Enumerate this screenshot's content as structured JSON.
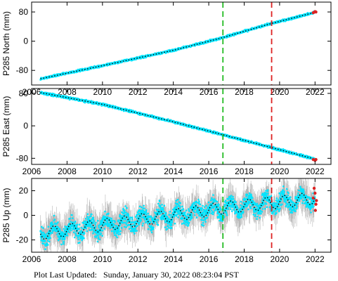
{
  "chart_data": [
    {
      "type": "scatter",
      "ylabel": "P285 North (mm)",
      "xlim": [
        2006,
        2022.9
      ],
      "ylim": [
        -120,
        107
      ],
      "yticks": [
        -80,
        0,
        80
      ],
      "xticks": [
        2006,
        2008,
        2010,
        2012,
        2014,
        2016,
        2018,
        2020,
        2022
      ],
      "show_x_tick_labels": true,
      "series": [
        {
          "x": [
            2006.5,
            2010,
            2014,
            2016.8,
            2019.5,
            2022
          ],
          "y": [
            -103,
            -67,
            -25,
            10,
            48,
            79
          ]
        }
      ],
      "error_band": 3,
      "noise": 2,
      "seasonal_amplitude": 0,
      "red_points": [
        [
          2021.9,
          78
        ],
        [
          2022.0,
          81
        ],
        [
          2022.05,
          80
        ]
      ],
      "vlines": [
        {
          "x": 2016.8,
          "color": "#22bb22"
        },
        {
          "x": 2019.55,
          "color": "#dd2222"
        }
      ]
    },
    {
      "type": "scatter",
      "ylabel": "P285 East (mm)",
      "xlim": [
        2006,
        2022.9
      ],
      "ylim": [
        -95,
        92
      ],
      "yticks": [
        -80,
        0,
        80
      ],
      "xticks": [
        2006,
        2008,
        2010,
        2012,
        2014,
        2016,
        2018,
        2020,
        2022
      ],
      "show_x_tick_labels": true,
      "series": [
        {
          "x": [
            2006.5,
            2010,
            2014,
            2016.8,
            2019.5,
            2022
          ],
          "y": [
            82,
            53,
            10,
            -22,
            -53,
            -82
          ]
        }
      ],
      "error_band": 3,
      "noise": 2,
      "seasonal_amplitude": 0,
      "red_points": [
        [
          2021.9,
          -83
        ],
        [
          2022.0,
          -85
        ],
        [
          2022.05,
          -83
        ]
      ],
      "vlines": [
        {
          "x": 2016.8,
          "color": "#22bb22"
        },
        {
          "x": 2019.55,
          "color": "#dd2222"
        }
      ]
    },
    {
      "type": "scatter",
      "ylabel": "P285 Up (mm)",
      "xlim": [
        2006,
        2022.9
      ],
      "ylim": [
        -30,
        30
      ],
      "yticks": [
        -20,
        0,
        20
      ],
      "xticks": [
        2006,
        2008,
        2010,
        2012,
        2014,
        2016,
        2018,
        2020,
        2022
      ],
      "show_x_tick_labels": true,
      "series": [
        {
          "x": [
            2006.5,
            2010,
            2014,
            2016.8,
            2019.5,
            2022
          ],
          "y": [
            -15,
            -8,
            0,
            6,
            10,
            14
          ]
        }
      ],
      "error_band": 12,
      "noise": 5,
      "seasonal_amplitude": 5,
      "red_points": [
        [
          2021.9,
          14
        ],
        [
          2022.0,
          18
        ],
        [
          2022.05,
          9
        ],
        [
          2022.02,
          4
        ],
        [
          2021.95,
          22
        ],
        [
          2022.08,
          12
        ]
      ],
      "vlines": [
        {
          "x": 2016.8,
          "color": "#22bb22"
        },
        {
          "x": 2019.55,
          "color": "#dd2222"
        }
      ]
    }
  ],
  "footer": {
    "label": "Plot Last Updated:",
    "timestamp": "Sunday, January 30, 2022 08:23:04 PST"
  },
  "colors": {
    "points": "#00e5ff",
    "error_bars": "#b8b8b8",
    "model_line": "#000000",
    "red_points": "#dd2222"
  }
}
